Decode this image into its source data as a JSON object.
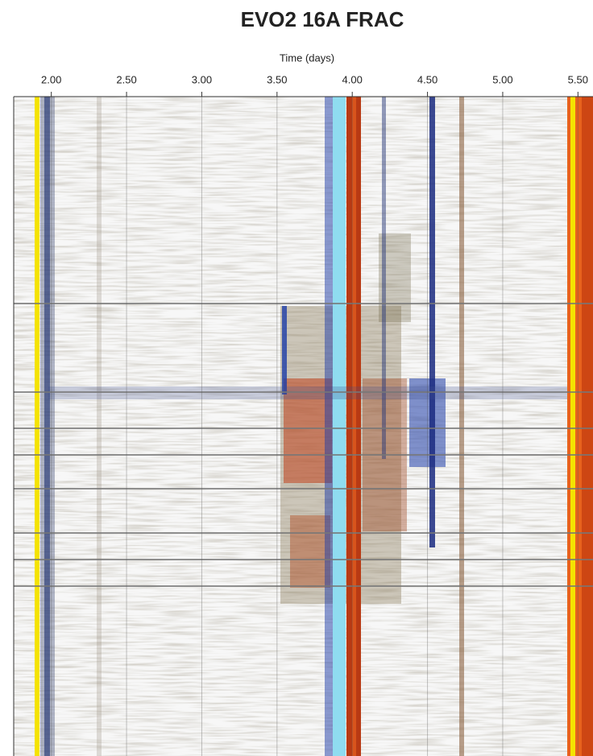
{
  "chart_data": {
    "type": "waterfall",
    "title": "EVO2 16A FRAC",
    "x_label": "Time (days)",
    "xlim": [
      1.75,
      5.6
    ],
    "xticks": [
      {
        "value": 2,
        "label": "2.00"
      },
      {
        "value": 2.5,
        "label": "2.50"
      },
      {
        "value": 3,
        "label": "3.00"
      },
      {
        "value": 3.5,
        "label": "3.50"
      },
      {
        "value": 4,
        "label": "4.00"
      },
      {
        "value": 4.5,
        "label": "4.50"
      },
      {
        "value": 5,
        "label": "5.00"
      },
      {
        "value": 5.5,
        "label": "5.50"
      }
    ],
    "grid": true
  }
}
